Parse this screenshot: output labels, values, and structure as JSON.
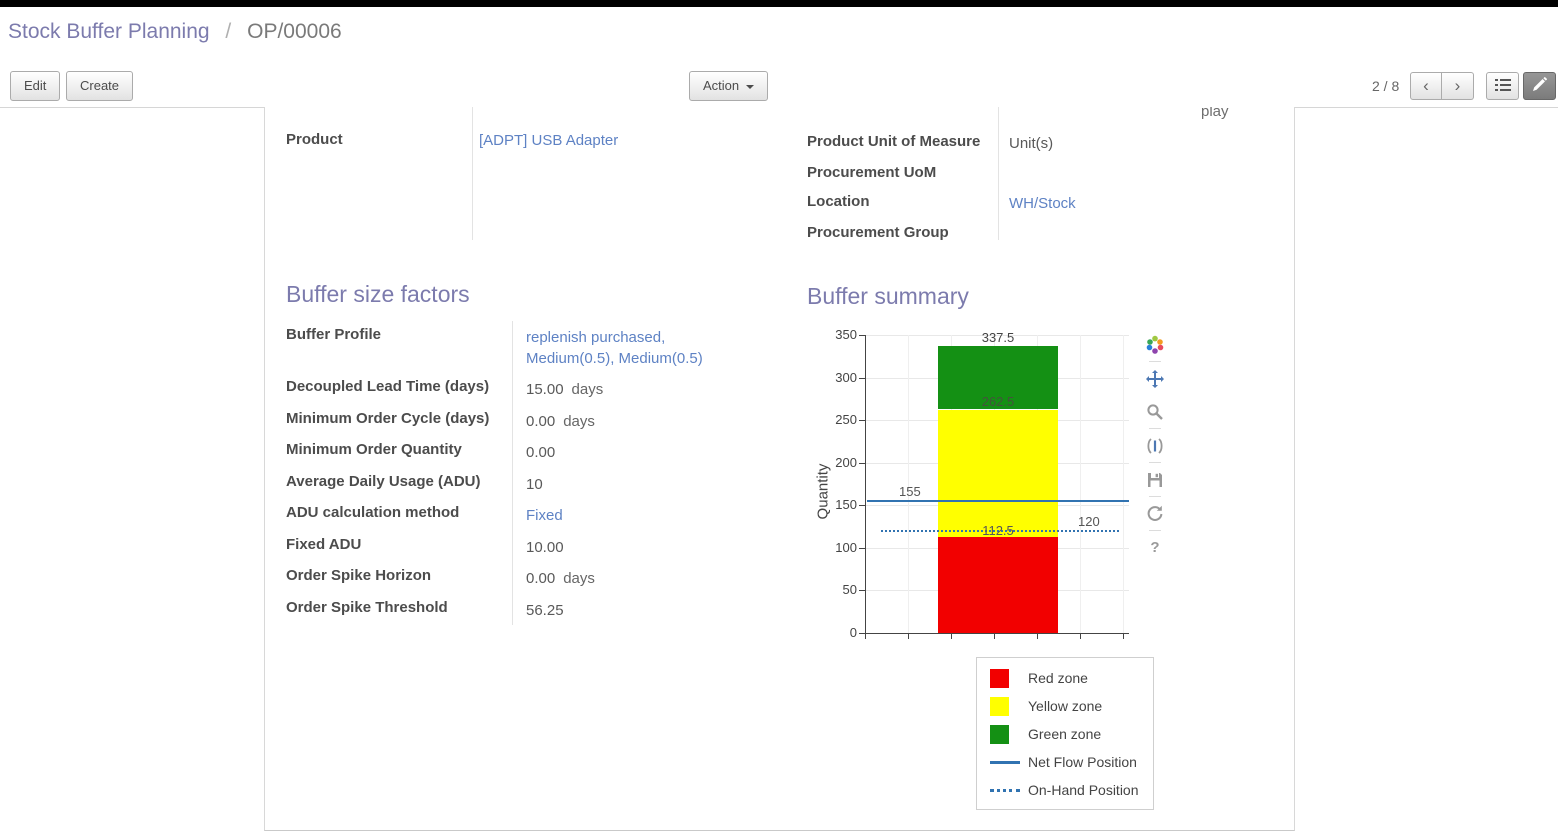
{
  "breadcrumb": {
    "parent": "Stock Buffer Planning",
    "separator": "/",
    "current": "OP/00006"
  },
  "toolbar": {
    "edit_label": "Edit",
    "create_label": "Create",
    "action_label": "Action",
    "pager": "2 / 8"
  },
  "icons": {
    "previous_page": "‹",
    "next_page": "›"
  },
  "colors": {
    "accent": "#7c7bad",
    "link": "#5e82c4",
    "red_zone": "#f20000",
    "yellow_zone": "#ffff00",
    "green_zone": "#149014",
    "flow_line": "#3173b1"
  },
  "sheet": {
    "clipped_text": "play",
    "product": {
      "label": "Product",
      "value": "[ADPT] USB Adapter"
    },
    "right_fields": [
      {
        "label": "Product Unit of Measure",
        "value": "Unit(s)"
      },
      {
        "label": "Procurement UoM",
        "value": ""
      },
      {
        "label": "Location",
        "value": "WH/Stock"
      },
      {
        "label": "Procurement Group",
        "value": ""
      }
    ],
    "buffer_factors": {
      "title": "Buffer size factors",
      "rows": [
        {
          "label": "Buffer Profile",
          "value": "replenish purchased, Medium(0.5), Medium(0.5)",
          "suffix": ""
        },
        {
          "label": "Decoupled Lead Time (days)",
          "value": "15.00",
          "suffix": "days"
        },
        {
          "label": "Minimum Order Cycle (days)",
          "value": "0.00",
          "suffix": "days"
        },
        {
          "label": "Minimum Order Quantity",
          "value": "0.00",
          "suffix": ""
        },
        {
          "label": "Average Daily Usage (ADU)",
          "value": "10",
          "suffix": ""
        },
        {
          "label": "ADU calculation method",
          "value": "Fixed",
          "suffix": ""
        },
        {
          "label": "Fixed ADU",
          "value": "10.00",
          "suffix": ""
        },
        {
          "label": "Order Spike Horizon",
          "value": "0.00",
          "suffix": "days"
        },
        {
          "label": "Order Spike Threshold",
          "value": "56.25",
          "suffix": ""
        }
      ]
    },
    "buffer_summary": {
      "title": "Buffer summary"
    }
  },
  "chart_data": {
    "type": "bar",
    "subtype": "stacked-bar-with-reference-lines",
    "title": "",
    "xlabel": "",
    "ylabel": "Quantity",
    "ylim": [
      0,
      350
    ],
    "yticks": [
      0,
      50,
      100,
      150,
      200,
      250,
      300,
      350
    ],
    "grid": true,
    "zones": [
      {
        "name": "Red zone",
        "from": 0,
        "to": 112.5,
        "color": "#f20000"
      },
      {
        "name": "Yellow zone",
        "from": 112.5,
        "to": 262.5,
        "color": "#ffff00"
      },
      {
        "name": "Green zone",
        "from": 262.5,
        "to": 337.5,
        "color": "#149014"
      }
    ],
    "lines": [
      {
        "name": "Net Flow Position",
        "value": 155,
        "style": "solid",
        "color": "#3173b1"
      },
      {
        "name": "On-Hand Position",
        "value": 120,
        "style": "dotted",
        "color": "#3173b1"
      }
    ],
    "annotations": [
      {
        "text": "337.5",
        "value": 337.5,
        "x": "bar-center",
        "dy": -16,
        "color": "#444444"
      },
      {
        "text": "262.5",
        "value": 262.5,
        "x": "bar-center",
        "dy": -16,
        "color": "#44543c"
      },
      {
        "text": "155",
        "value": 155,
        "x": "left",
        "dy": -17,
        "color": "#555555"
      },
      {
        "text": "112.5",
        "value": 112.5,
        "x": "bar-center",
        "dy": -14,
        "color": "#555555"
      },
      {
        "text": "120",
        "value": 120,
        "x": "right",
        "dy": -17,
        "color": "#555555"
      }
    ],
    "legend_position": "below-right",
    "legend": [
      {
        "label": "Red zone",
        "type": "box",
        "color": "#f20000"
      },
      {
        "label": "Yellow zone",
        "type": "box",
        "color": "#ffff00"
      },
      {
        "label": "Green zone",
        "type": "box",
        "color": "#149014"
      },
      {
        "label": "Net Flow Position",
        "type": "line",
        "color": "#3173b1"
      },
      {
        "label": "On-Hand Position",
        "type": "dotted",
        "color": "#3173b1"
      }
    ]
  }
}
